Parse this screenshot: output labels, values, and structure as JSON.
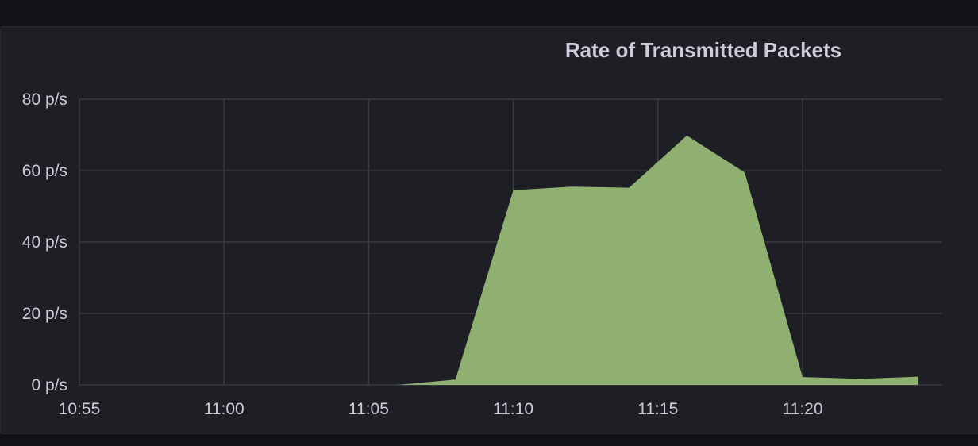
{
  "panel": {
    "title": "Rate of Transmitted Packets"
  },
  "chart_data": {
    "type": "area",
    "title": "Rate of Transmitted Packets",
    "xlabel": "",
    "ylabel": "",
    "x_ticks": [
      "10:55",
      "11:00",
      "11:05",
      "11:10",
      "11:15",
      "11:20"
    ],
    "y_ticks": [
      "0 p/s",
      "20 p/s",
      "40 p/s",
      "60 p/s",
      "80 p/s"
    ],
    "ylim": [
      0,
      80
    ],
    "xlim": [
      "10:55",
      "11:25"
    ],
    "grid": true,
    "series": [
      {
        "color": "#8fb070",
        "x": [
          "11:06",
          "11:08",
          "11:10",
          "11:12",
          "11:14",
          "11:16",
          "11:18",
          "11:20",
          "11:22",
          "11:24"
        ],
        "values": [
          0,
          1.5,
          54.5,
          55.5,
          55.2,
          69.8,
          59.5,
          2.2,
          1.7,
          2.3
        ]
      }
    ]
  }
}
